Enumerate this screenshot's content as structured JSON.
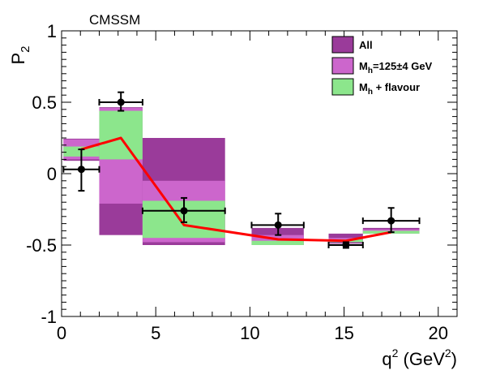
{
  "chart_data": {
    "type": "bar",
    "title": "CMSSM",
    "xlabel": {
      "base": "q",
      "sup": "2",
      "unit_pre": " (GeV",
      "unit_sup": "2",
      "unit_post": ")"
    },
    "ylabel": {
      "base": "P",
      "sub": "2"
    },
    "xlim": [
      0,
      21
    ],
    "ylim": [
      -1,
      1
    ],
    "x_ticks": [
      0,
      5,
      10,
      15,
      20
    ],
    "x_tick_labels": [
      "0",
      "5",
      "10",
      "15",
      "20"
    ],
    "y_ticks": [
      -1,
      -0.5,
      0,
      0.5,
      1
    ],
    "y_tick_labels": [
      "-1",
      "-0.5",
      "0",
      "0.5",
      "1"
    ],
    "grid": false,
    "legend_position": "top-right",
    "legend": [
      {
        "key": "all",
        "label_pre": "All",
        "sub": "",
        "label_post": ""
      },
      {
        "key": "mh",
        "label_pre": "M",
        "sub": "h",
        "label_post": "=125±4 GeV"
      },
      {
        "key": "flav",
        "label_pre": "M",
        "sub": "h",
        "label_post": " + flavour"
      }
    ],
    "colors": {
      "all": "#9a3b9a",
      "mh": "#cc66cc",
      "flav": "#8ce68c",
      "line": "#ff0000",
      "points": "#000000"
    },
    "bins": [
      {
        "x": [
          0.1,
          2.0
        ],
        "all": [
          0.09,
          0.245
        ],
        "mh": [
          0.1,
          0.24
        ],
        "flav": [
          0.12,
          0.19
        ]
      },
      {
        "x": [
          2.0,
          4.3
        ],
        "all": [
          -0.43,
          0.465
        ],
        "mh": [
          -0.21,
          0.46
        ],
        "flav": [
          0.1,
          0.44
        ]
      },
      {
        "x": [
          4.3,
          8.68
        ],
        "all": [
          -0.5,
          0.25
        ],
        "mh": [
          -0.48,
          -0.05
        ],
        "flav": [
          -0.45,
          -0.19
        ]
      },
      {
        "x": [
          10.09,
          12.86
        ],
        "all": [
          -0.5,
          -0.38
        ],
        "mh": [
          -0.5,
          -0.43
        ],
        "flav": [
          -0.5,
          -0.47
        ]
      },
      {
        "x": [
          14.18,
          16.0
        ],
        "all": [
          -0.49,
          -0.42
        ],
        "mh": [
          -0.48,
          -0.45
        ],
        "flav": [
          -0.48,
          -0.46
        ]
      },
      {
        "x": [
          16.0,
          19.0
        ],
        "all": [
          -0.42,
          -0.38
        ],
        "mh": [
          -0.42,
          -0.39
        ],
        "flav": [
          -0.42,
          -0.4
        ]
      }
    ],
    "line": {
      "x": [
        1.05,
        3.15,
        6.5,
        11.5,
        15.1,
        17.5
      ],
      "y": [
        0.17,
        0.25,
        -0.36,
        -0.46,
        -0.47,
        -0.41
      ]
    },
    "points": [
      {
        "x": 1.05,
        "xlo": 0.1,
        "xhi": 2.0,
        "y": 0.03,
        "ylo": -0.12,
        "yhi": 0.17
      },
      {
        "x": 3.15,
        "xlo": 2.0,
        "xhi": 4.3,
        "y": 0.5,
        "ylo": 0.44,
        "yhi": 0.57
      },
      {
        "x": 6.5,
        "xlo": 4.3,
        "xhi": 8.68,
        "y": -0.26,
        "ylo": -0.34,
        "yhi": -0.17
      },
      {
        "x": 11.5,
        "xlo": 10.09,
        "xhi": 12.86,
        "y": -0.36,
        "ylo": -0.43,
        "yhi": -0.28
      },
      {
        "x": 15.1,
        "xlo": 14.18,
        "xhi": 16.0,
        "y": -0.5,
        "ylo": -0.52,
        "yhi": -0.48
      },
      {
        "x": 17.5,
        "xlo": 16.0,
        "xhi": 19.0,
        "y": -0.33,
        "ylo": -0.41,
        "yhi": -0.24
      }
    ]
  }
}
